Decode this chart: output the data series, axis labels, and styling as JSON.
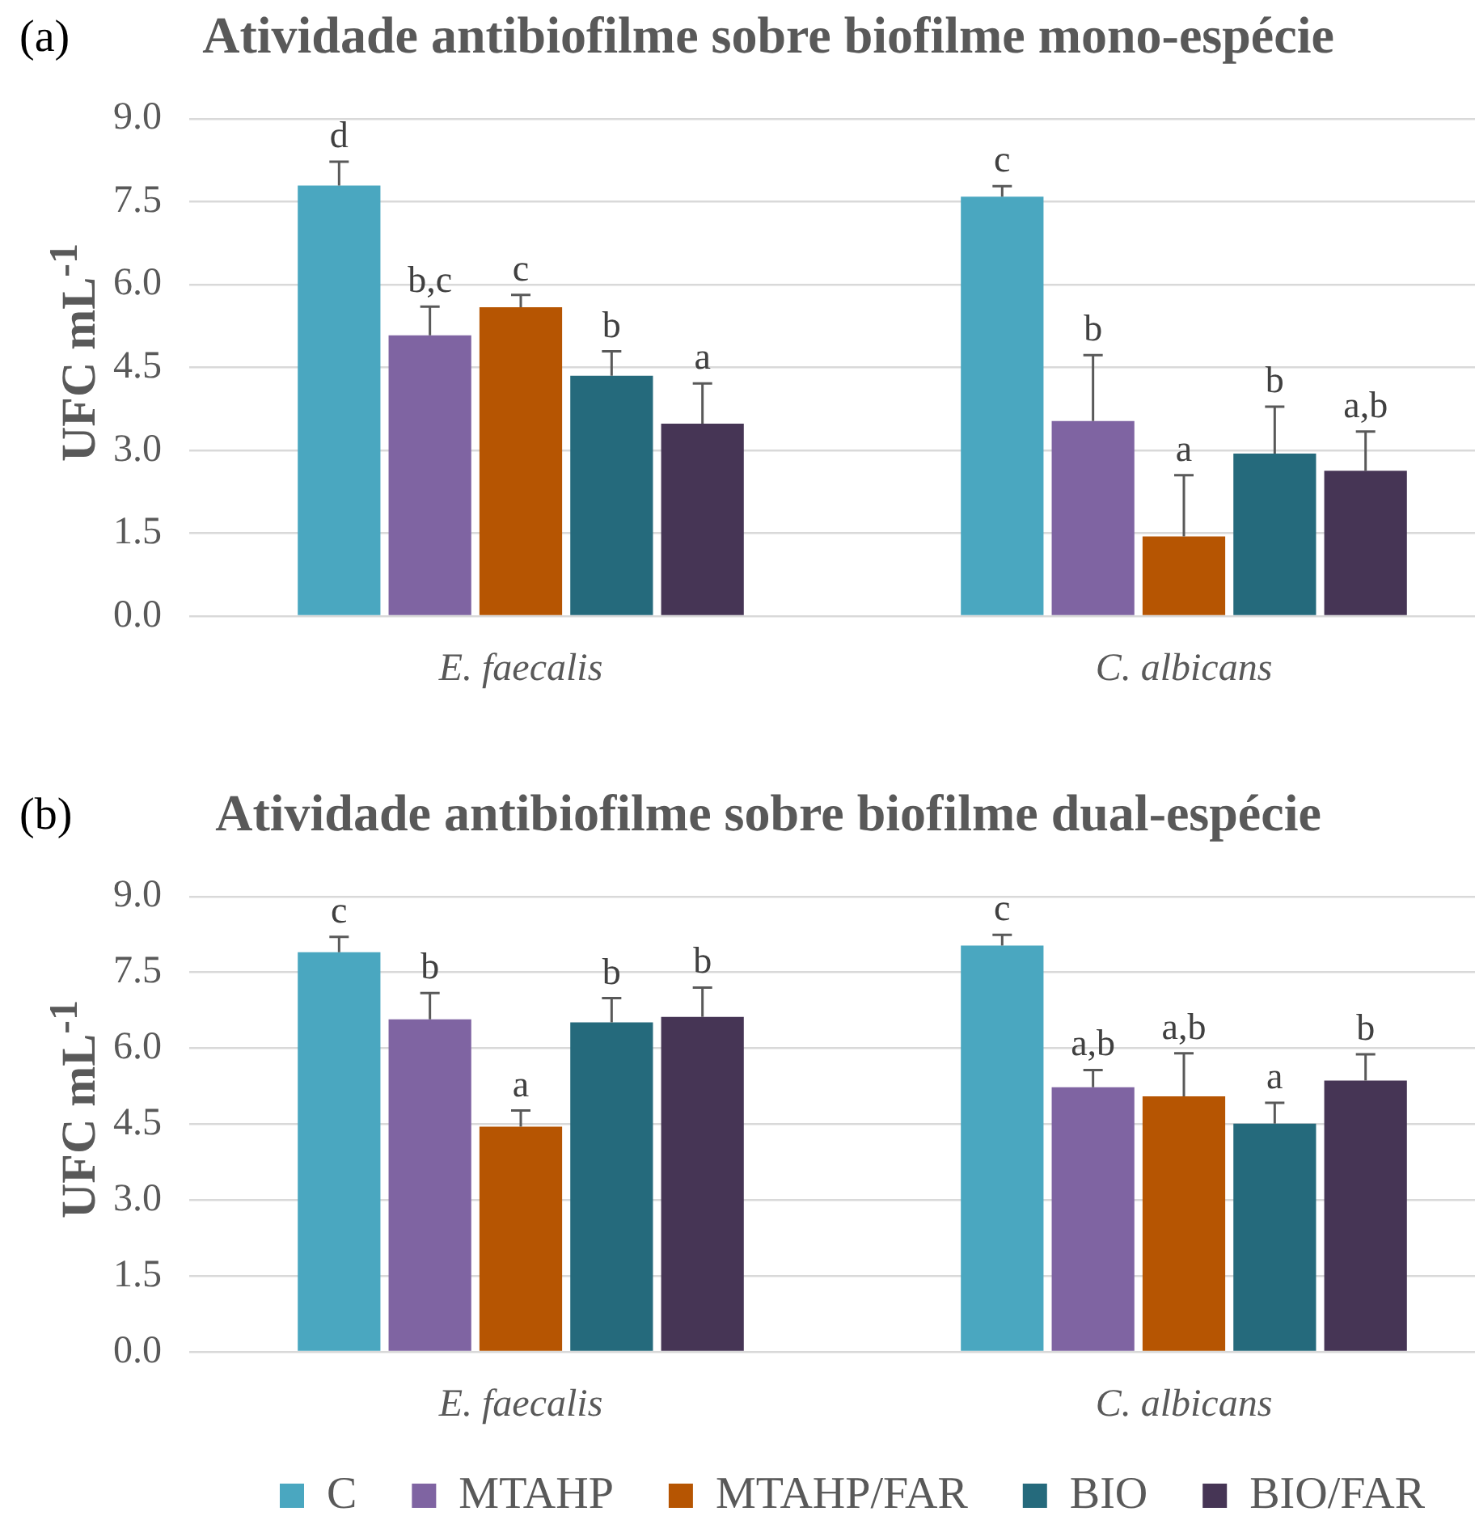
{
  "chart_data": [
    {
      "type": "bar",
      "title": "Atividade antibiofilme sobre biofilme mono-espécie",
      "ylabel": "UFC mL$^{-1}$",
      "annotations": [
        "(a)"
      ],
      "categories": [
        "E. faecalis",
        "C. albicans"
      ],
      "series": [
        {
          "color": "#4aa7c0",
          "values": [
            7.79,
            7.59
          ],
          "errors": [
            [
              7.79,
              8.22
            ],
            [
              7.59,
              7.78
            ]
          ],
          "value_labels": [
            "d",
            "c"
          ]
        },
        {
          "color": "#7f64a2",
          "values": [
            5.08,
            3.53
          ],
          "errors": [
            [
              5.08,
              5.6
            ],
            [
              3.53,
              4.72
            ]
          ],
          "value_labels": [
            "b,c",
            "b"
          ]
        },
        {
          "color": "#b65502",
          "values": [
            5.59,
            1.44
          ],
          "errors": [
            [
              5.59,
              5.81
            ],
            [
              1.44,
              2.55
            ]
          ],
          "value_labels": [
            "c",
            "a"
          ]
        },
        {
          "color": "#256a7c",
          "values": [
            4.35,
            2.94
          ],
          "errors": [
            [
              4.35,
              4.79
            ],
            [
              2.94,
              3.79
            ]
          ],
          "value_labels": [
            "b",
            "b"
          ]
        },
        {
          "color": "#463555",
          "values": [
            3.48,
            2.63
          ],
          "errors": [
            [
              3.48,
              4.21
            ],
            [
              2.63,
              3.34
            ]
          ],
          "value_labels": [
            "a",
            "a,b"
          ]
        }
      ],
      "ylim": [
        0,
        9
      ],
      "yticks": [
        {
          "value": 0,
          "label": "0.0"
        },
        1.5,
        {
          "value": 3,
          "label": "3.0"
        },
        4.5,
        {
          "value": 6,
          "label": "6.0"
        },
        7.5,
        {
          "value": 9,
          "label": "9.0"
        }
      ],
      "grid": "y",
      "legend": false
    },
    {
      "type": "bar",
      "title": "Atividade antibiofilme sobre biofilme dual-espécie",
      "ylabel": "UFC mL$^{-1}$",
      "annotations": [
        "(b)"
      ],
      "categories": [
        "E. faecalis",
        "C. albicans"
      ],
      "series": [
        {
          "name": "C",
          "color": "#4aa7c0",
          "values": [
            7.9,
            8.03
          ],
          "errors": [
            [
              7.9,
              8.2
            ],
            [
              8.03,
              8.24
            ]
          ],
          "value_labels": [
            "c",
            "c"
          ]
        },
        {
          "name": "MTAHP",
          "color": "#7f64a2",
          "values": [
            6.57,
            5.23
          ],
          "errors": [
            [
              6.57,
              7.09
            ],
            [
              5.23,
              5.57
            ]
          ],
          "value_labels": [
            "b",
            "a,b"
          ]
        },
        {
          "name": "MTAHP/FAR",
          "color": "#b65502",
          "values": [
            4.45,
            5.05
          ],
          "errors": [
            [
              4.45,
              4.77
            ],
            [
              5.05,
              5.9
            ]
          ],
          "value_labels": [
            "a",
            "a,b"
          ]
        },
        {
          "name": "BIO",
          "color": "#256a7c",
          "values": [
            6.51,
            4.51
          ],
          "errors": [
            [
              6.51,
              6.99
            ],
            [
              4.51,
              4.92
            ]
          ],
          "value_labels": [
            "b",
            "a"
          ]
        },
        {
          "name": "BIO/FAR",
          "color": "#463555",
          "values": [
            6.62,
            5.36
          ],
          "errors": [
            [
              6.62,
              7.2
            ],
            [
              5.36,
              5.88
            ]
          ],
          "value_labels": [
            "b",
            "b"
          ]
        }
      ],
      "ylim": [
        0,
        9
      ],
      "yticks": [
        {
          "value": 0,
          "label": "0.0"
        },
        1.5,
        {
          "value": 3,
          "label": "3.0"
        },
        4.5,
        {
          "value": 6,
          "label": "6.0"
        },
        7.5,
        {
          "value": 9,
          "label": "9.0"
        }
      ],
      "grid": "y",
      "legend": "bottom"
    }
  ]
}
